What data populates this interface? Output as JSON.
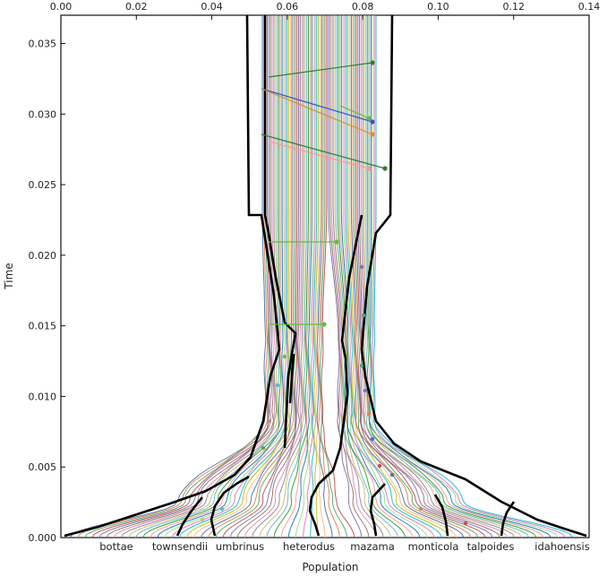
{
  "figure": {
    "type": "coalescent-tree-diagram",
    "x_axis_top": {
      "ticks": [
        0.0,
        0.02,
        0.04,
        0.06,
        0.08,
        0.1,
        0.12,
        0.14
      ],
      "tick_labels": [
        "0.00",
        "0.02",
        "0.04",
        "0.06",
        "0.08",
        "0.10",
        "0.12",
        "0.14"
      ],
      "range": [
        0,
        0.14
      ]
    },
    "y_axis": {
      "title": "Time",
      "ticks": [
        0.0,
        0.005,
        0.01,
        0.015,
        0.02,
        0.025,
        0.03,
        0.035
      ],
      "tick_labels": [
        "0.000",
        "0.005",
        "0.010",
        "0.015",
        "0.020",
        "0.025",
        "0.030",
        "0.035"
      ],
      "range": [
        0,
        0.037
      ]
    },
    "x_axis_bottom": {
      "title": "Population",
      "populations": [
        "bottae",
        "townsendii",
        "umbrinus",
        "heterodus",
        "mazama",
        "monticola",
        "talpoides",
        "idahoensis"
      ]
    },
    "colors": {
      "outline": "#000000",
      "palette": [
        "#4c72b0",
        "#dd8452",
        "#55a868",
        "#c44e52",
        "#8172b3",
        "#937860",
        "#da8bc3",
        "#8c8c8c",
        "#ccb974",
        "#64b5cd",
        "#2ca02c",
        "#ff9896",
        "#1f77b4",
        "#98df8a",
        "#e377c2",
        "#17becf",
        "#bcbd22",
        "#ffbb78"
      ]
    }
  }
}
